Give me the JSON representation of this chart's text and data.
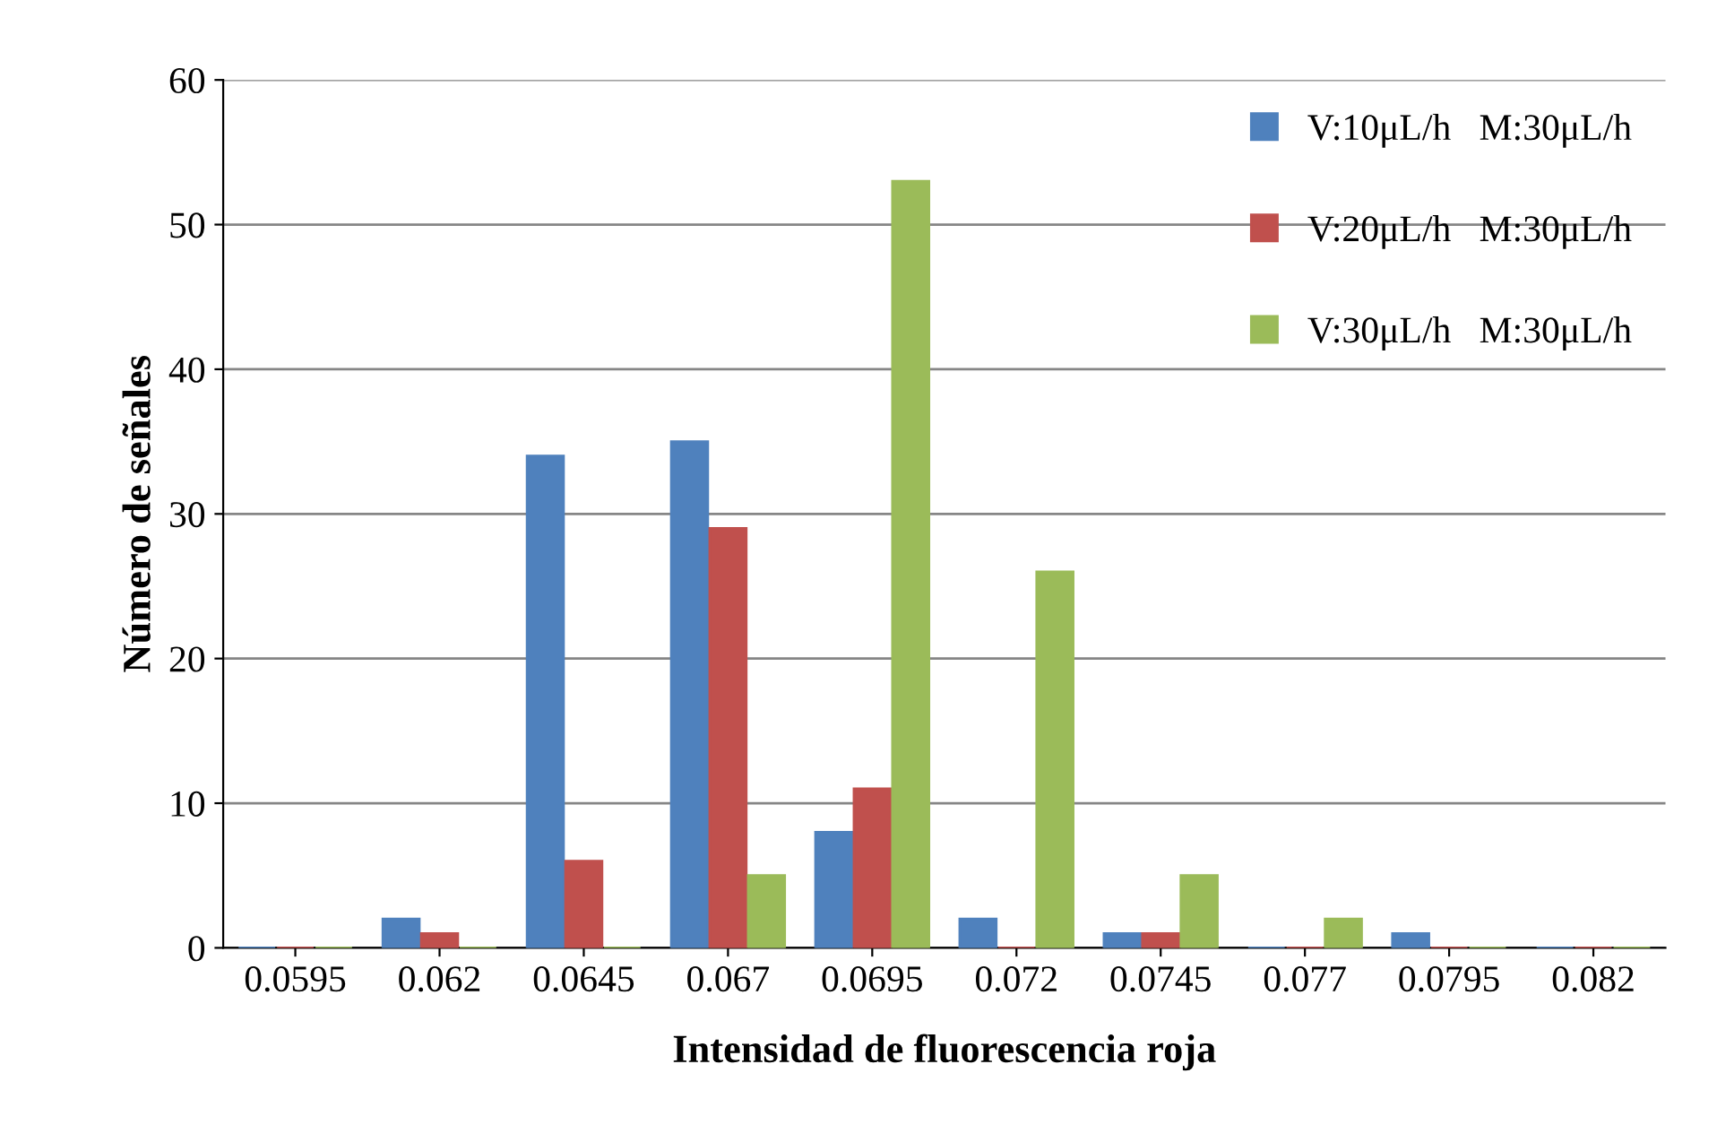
{
  "chart_data": {
    "type": "bar",
    "xlabel": "Intensidad de fluorescencia roja",
    "ylabel": "Número de señales",
    "categories": [
      "0.0595",
      "0.062",
      "0.0645",
      "0.067",
      "0.0695",
      "0.072",
      "0.0745",
      "0.077",
      "0.0795",
      "0.082"
    ],
    "series": [
      {
        "name": "V:10μL/h   M:30μL/h",
        "color": "#4f81bd",
        "values": [
          0,
          2,
          34,
          35,
          8,
          2,
          1,
          0,
          1,
          0
        ]
      },
      {
        "name": "V:20μL/h   M:30μL/h",
        "color": "#c0504d",
        "values": [
          0,
          1,
          6,
          29,
          11,
          0,
          1,
          0,
          0,
          0
        ]
      },
      {
        "name": "V:30μL/h   M:30μL/h",
        "color": "#9bbb59",
        "values": [
          0,
          0,
          0,
          5,
          53,
          26,
          5,
          2,
          0,
          0
        ]
      }
    ],
    "ylim": [
      0,
      60
    ],
    "yticks": [
      0,
      10,
      20,
      30,
      40,
      50,
      60
    ],
    "grid": "y",
    "legend": "top right"
  }
}
